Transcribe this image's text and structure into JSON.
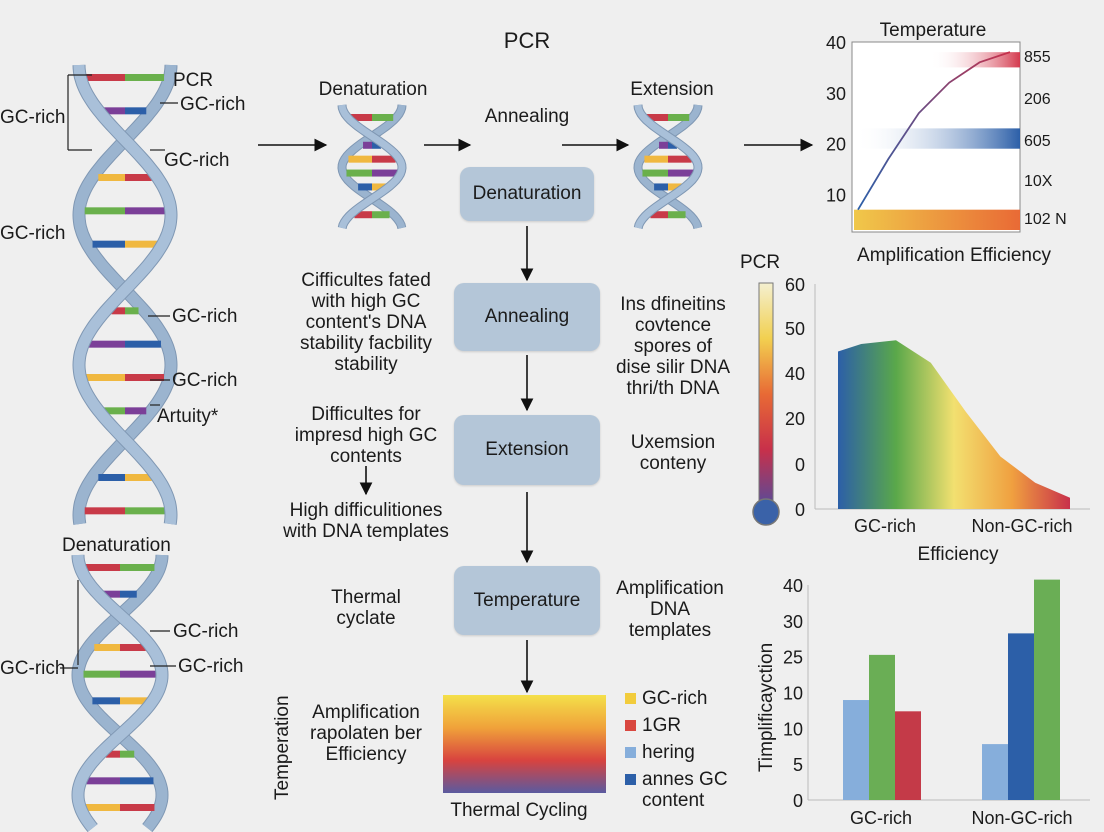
{
  "title": "PCR",
  "helix_labels": {
    "pcr": "PCR",
    "gc1": "GC-rich",
    "gc2": "GC-rich",
    "gc3": "GC-rich",
    "gc4": "GC-rich",
    "gc5": "GC-rich",
    "gc6": "GC-rich",
    "artuity": "Artuity*",
    "denaturation": "Denaturation",
    "gc7": "GC-rich",
    "gc8": "GC-rich",
    "gc9": "GC-rich"
  },
  "top_flow": {
    "denaturation": "Denaturation",
    "annealing": "Annealing",
    "extension": "Extension"
  },
  "flow_boxes": [
    "Denaturation",
    "Annealing",
    "Extension",
    "Temperature"
  ],
  "left_notes": [
    "Cifficultes fated\nwith high GC\ncontent's DNA\nstability facbility\nstability",
    "Difficultes for\nimpresd high GC\ncontents",
    "High difficulitiones\nwith DNA templates",
    "Thermal\ncyclate",
    "Amplification\nrapolaten ber\nEfficiency"
  ],
  "right_notes": [
    "Ins dfineitins\ncovtence\nspores of\ndise silir DNA\nthri/th DNA",
    "Uxemsion\nconteny",
    "Amplification\nDNA\ntemplates"
  ],
  "thermal": {
    "ylabel": "Temperation",
    "xlabel": "Thermal Cycling",
    "gradient": [
      "#f4e04a",
      "#f0a23a",
      "#d8433f",
      "#5a5aa0"
    ],
    "legend": [
      {
        "label": "GC-rich",
        "color": "#f2cc3c"
      },
      {
        "label": "1GR",
        "color": "#d9473f"
      },
      {
        "label": "hering",
        "color": "#86aedb"
      },
      {
        "label": "annes GC\ncontent",
        "color": "#2c5fa8"
      }
    ]
  },
  "chart_data": [
    {
      "type": "line",
      "title": "Temperature",
      "xlabel": "Amplification Efficiency",
      "yticks": [
        10,
        20,
        30,
        40
      ],
      "ylim": [
        3,
        40
      ],
      "right_labels": [
        "855",
        "206",
        "605",
        "10X",
        "102 N"
      ],
      "bands": [
        {
          "y": [
            35,
            38
          ],
          "color": "#d43a4e"
        },
        {
          "y": [
            19,
            23
          ],
          "color": "#2c5fa8"
        },
        {
          "y": [
            3,
            7
          ],
          "color": "#f0c84a",
          "color_end": "#e96a35"
        }
      ],
      "curve": {
        "x": [
          0,
          0.2,
          0.4,
          0.6,
          0.8,
          1
        ],
        "y": [
          7,
          17,
          26,
          32,
          36,
          38
        ]
      }
    },
    {
      "type": "area",
      "title": "PCR",
      "xlabel": "Efficiency",
      "categories": [
        "GC-rich",
        "Non-GC-rich"
      ],
      "yticks": [
        "0",
        "0",
        "20",
        "40",
        "50",
        "60"
      ],
      "curve": {
        "x": [
          0,
          0.1,
          0.25,
          0.4,
          0.55,
          0.7,
          0.85,
          1
        ],
        "y": [
          42,
          44,
          45,
          39,
          26,
          14,
          7,
          3
        ]
      },
      "gradient": [
        "#2c5fa8",
        "#5aa84a",
        "#f2e070",
        "#f0a040",
        "#c8304a"
      ]
    },
    {
      "type": "bar",
      "ylabel": "Timplificayction",
      "categories": [
        "GC-rich",
        "Non-GC-rich"
      ],
      "yticks": [
        "0",
        "5",
        "10",
        "10",
        "25",
        "30",
        "40"
      ],
      "ylim": [
        0,
        40
      ],
      "series": [
        {
          "color": "#86aedb",
          "values": [
            18.6,
            10.4
          ]
        },
        {
          "color": "#6aae55",
          "values": [
            27,
            0
          ]
        },
        {
          "color": "#c43a48",
          "values": [
            16.5,
            0
          ]
        },
        {
          "color": "#2c5fa8",
          "values": [
            0,
            31
          ]
        },
        {
          "color": "#6aae55",
          "values": [
            0,
            41
          ]
        }
      ]
    }
  ],
  "colors": {
    "box": "#b4c6d8",
    "strand": "#9bb4cf",
    "rungs": [
      "#c83a48",
      "#6ab04c",
      "#7b3f98",
      "#2c5fa8",
      "#f0b840"
    ]
  }
}
